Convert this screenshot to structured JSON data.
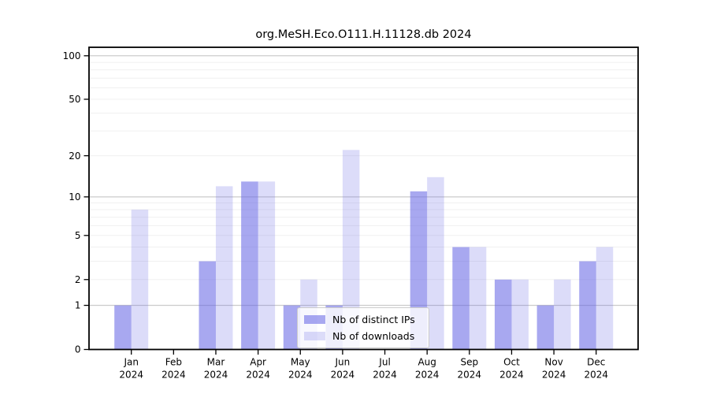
{
  "chart_data": {
    "type": "bar",
    "title": "org.MeSH.Eco.O111.H.11128.db 2024",
    "categories": [
      "Jan 2024",
      "Feb 2024",
      "Mar 2024",
      "Apr 2024",
      "May 2024",
      "Jun 2024",
      "Jul 2024",
      "Aug 2024",
      "Sep 2024",
      "Oct 2024",
      "Nov 2024",
      "Dec 2024"
    ],
    "series": [
      {
        "name": "Nb of distinct IPs",
        "color": "rgba(99,99,229,0.56)",
        "values": [
          1,
          0,
          3,
          13,
          1,
          1,
          0,
          11,
          4,
          2,
          1,
          3
        ]
      },
      {
        "name": "Nb of downloads",
        "color": "rgba(99,99,229,0.225)",
        "values": [
          8,
          0,
          12,
          13,
          2,
          22,
          0,
          14,
          4,
          2,
          2,
          4
        ]
      }
    ],
    "xlabel": "",
    "ylabel": "",
    "yscale": "log1p",
    "ylim": [
      0,
      110
    ],
    "y_ticks": [
      100,
      50,
      20,
      10,
      5,
      2,
      1,
      0
    ],
    "grid": {
      "decade_values": [
        1,
        10,
        100
      ],
      "minor_values": [
        2,
        3,
        4,
        5,
        6,
        7,
        8,
        9,
        20,
        30,
        40,
        50,
        60,
        70,
        80,
        90
      ],
      "decade_color": "#cccccc",
      "minor_color": "#f0f0f0"
    },
    "legend": {
      "position": "lower center",
      "labels": [
        "Nb of distinct IPs",
        "Nb of downloads"
      ]
    },
    "axis_color": "#000000",
    "background_color": "#ffffff"
  }
}
